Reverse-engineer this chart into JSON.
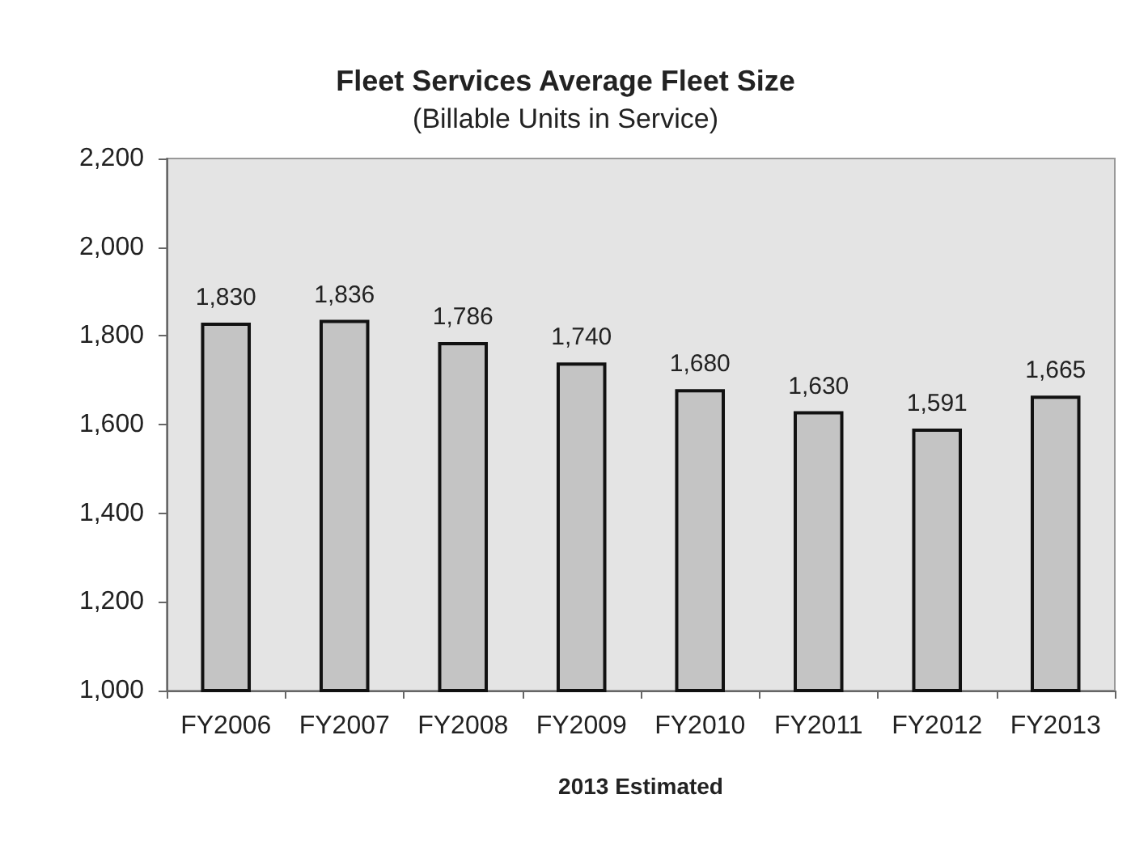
{
  "chart_data": {
    "type": "bar",
    "title": "Fleet Services Average Fleet Size",
    "subtitle": "(Billable Units in Service)",
    "xlabel": "2013 Estimated",
    "categories": [
      "FY2006",
      "FY2007",
      "FY2008",
      "FY2009",
      "FY2010",
      "FY2011",
      "FY2012",
      "FY2013"
    ],
    "values": [
      1830,
      1836,
      1786,
      1740,
      1680,
      1630,
      1591,
      1665
    ],
    "value_labels": [
      "1,830",
      "1,836",
      "1,786",
      "1,740",
      "1,680",
      "1,630",
      "1,591",
      "1,665"
    ],
    "color": "#c4c4c4",
    "ylim": [
      1000,
      2200
    ],
    "yticks": [
      {
        "value": 1000,
        "label": "1,000"
      },
      {
        "value": 1200,
        "label": "1,200"
      },
      {
        "value": 1400,
        "label": "1,400"
      },
      {
        "value": 1600,
        "label": "1,600"
      },
      {
        "value": 1800,
        "label": "1,800"
      },
      {
        "value": 2000,
        "label": "2,000"
      },
      {
        "value": 2200,
        "label": "2,200"
      }
    ],
    "grid": false
  }
}
